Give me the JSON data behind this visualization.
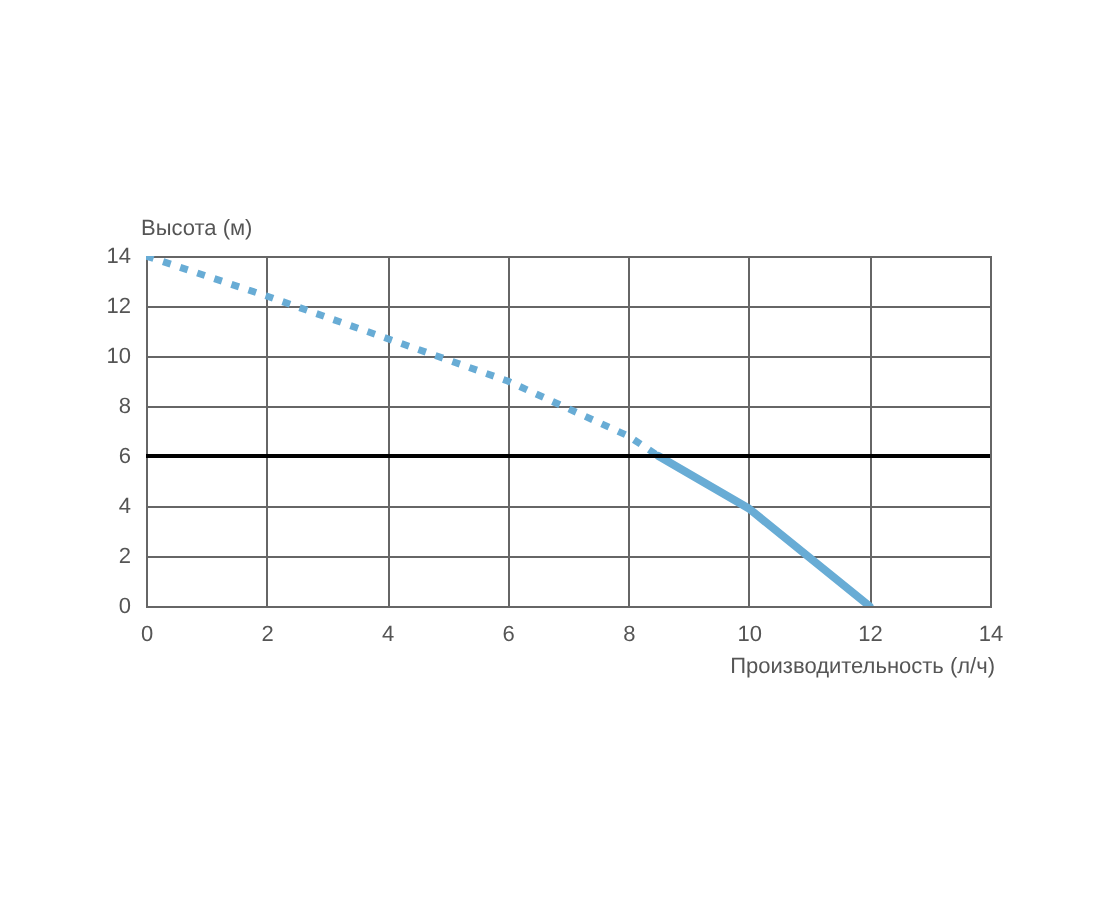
{
  "chart_data": {
    "type": "line",
    "xlabel": "Производительность (л/ч)",
    "ylabel": "Высота (м)",
    "xlim": [
      0,
      14
    ],
    "ylim": [
      0,
      14
    ],
    "xticks": [
      0,
      2,
      4,
      6,
      8,
      10,
      12,
      14
    ],
    "yticks": [
      0,
      2,
      4,
      6,
      8,
      10,
      12,
      14
    ],
    "grid": true,
    "series": [
      {
        "color": "#68acd5",
        "line_style": "dotted",
        "x": [
          0,
          2,
          4,
          6,
          8,
          8.5
        ],
        "values": [
          14,
          12.4,
          10.7,
          9,
          6.8,
          6
        ]
      },
      {
        "color": "#68acd5",
        "line_style": "solid",
        "x": [
          8.5,
          10,
          12
        ],
        "values": [
          6,
          3.9,
          0
        ]
      }
    ],
    "ref_lines": [
      {
        "axis": "y",
        "value": 6,
        "color": "#000000"
      }
    ]
  }
}
